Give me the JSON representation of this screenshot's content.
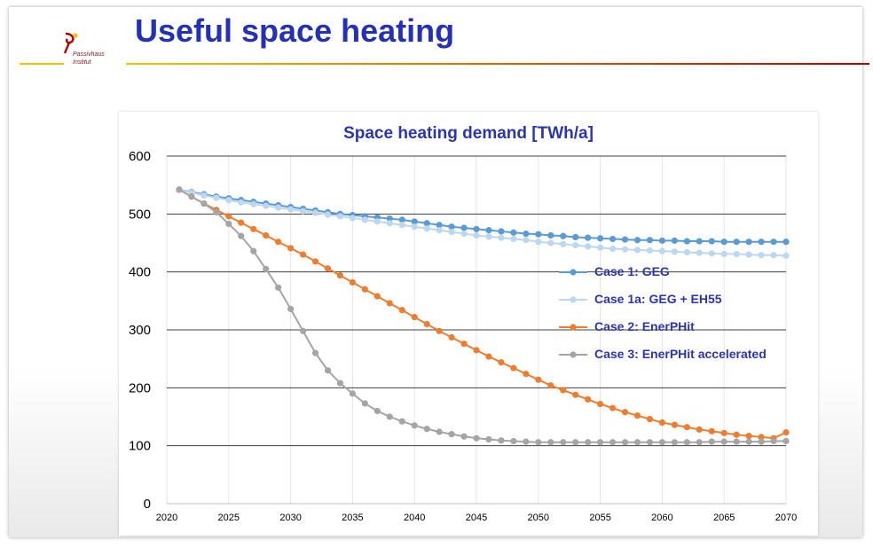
{
  "slide": {
    "title": "Useful space heating",
    "logo_line1": "Passivhaus",
    "logo_line2": "Institut"
  },
  "colors": {
    "title": "#2431b6",
    "case1": "#5b9bd5",
    "case1a": "#bdd7ee",
    "case2": "#ed7d31",
    "case3": "#a5a5a5"
  },
  "chart_data": {
    "type": "line",
    "title": "Space heating demand [TWh/a]",
    "xlabel": "",
    "ylabel": "",
    "xlim": [
      2020,
      2070
    ],
    "ylim": [
      0,
      600
    ],
    "x_ticks": [
      2020,
      2025,
      2030,
      2035,
      2040,
      2045,
      2050,
      2055,
      2060,
      2065,
      2070
    ],
    "y_ticks": [
      0,
      100,
      200,
      300,
      400,
      500,
      600
    ],
    "grid": "horizontal",
    "legend_position": "right",
    "x": [
      2021,
      2022,
      2023,
      2024,
      2025,
      2026,
      2027,
      2028,
      2029,
      2030,
      2031,
      2032,
      2033,
      2034,
      2035,
      2036,
      2037,
      2038,
      2039,
      2040,
      2041,
      2042,
      2043,
      2044,
      2045,
      2046,
      2047,
      2048,
      2049,
      2050,
      2051,
      2052,
      2053,
      2054,
      2055,
      2056,
      2057,
      2058,
      2059,
      2060,
      2061,
      2062,
      2063,
      2064,
      2065,
      2066,
      2067,
      2068,
      2069,
      2070
    ],
    "series": [
      {
        "name": "Case 1: GEG",
        "color": "#5b9bd5",
        "values": [
          542,
          538,
          534,
          530,
          527,
          524,
          521,
          518,
          515,
          512,
          509,
          506,
          503,
          500,
          498,
          496,
          494,
          492,
          490,
          487,
          484,
          481,
          478,
          476,
          474,
          472,
          470,
          468,
          466,
          465,
          463,
          462,
          460,
          459,
          458,
          457,
          456,
          455,
          455,
          454,
          454,
          453,
          453,
          453,
          452,
          452,
          452,
          452,
          452,
          452
        ]
      },
      {
        "name": "Case 1a: GEG + EH55",
        "color": "#bdd7ee",
        "values": [
          542,
          537,
          532,
          528,
          524,
          520,
          517,
          514,
          511,
          508,
          505,
          502,
          499,
          496,
          493,
          490,
          487,
          484,
          481,
          478,
          475,
          472,
          469,
          466,
          463,
          461,
          459,
          457,
          455,
          452,
          450,
          448,
          446,
          444,
          442,
          440,
          439,
          438,
          437,
          436,
          435,
          434,
          433,
          432,
          431,
          431,
          430,
          429,
          429,
          428
        ]
      },
      {
        "name": "Case 2: EnerPHit",
        "color": "#ed7d31",
        "values": [
          542,
          530,
          518,
          507,
          496,
          485,
          474,
          463,
          452,
          441,
          430,
          418,
          406,
          394,
          382,
          370,
          358,
          346,
          334,
          322,
          310,
          298,
          287,
          276,
          265,
          254,
          244,
          234,
          224,
          214,
          204,
          196,
          188,
          180,
          172,
          165,
          158,
          152,
          146,
          140,
          136,
          132,
          128,
          125,
          122,
          119,
          117,
          115,
          113,
          123
        ]
      },
      {
        "name": "Case 3: EnerPHit accelerated",
        "color": "#a5a5a5",
        "values": [
          542,
          530,
          518,
          503,
          483,
          462,
          436,
          405,
          373,
          336,
          298,
          260,
          230,
          208,
          190,
          173,
          160,
          150,
          142,
          135,
          129,
          124,
          120,
          116,
          113,
          111,
          109,
          108,
          107,
          106,
          106,
          106,
          106,
          106,
          106,
          106,
          106,
          106,
          106,
          106,
          106,
          106,
          106,
          107,
          107,
          107,
          107,
          107,
          108,
          108
        ]
      }
    ]
  }
}
